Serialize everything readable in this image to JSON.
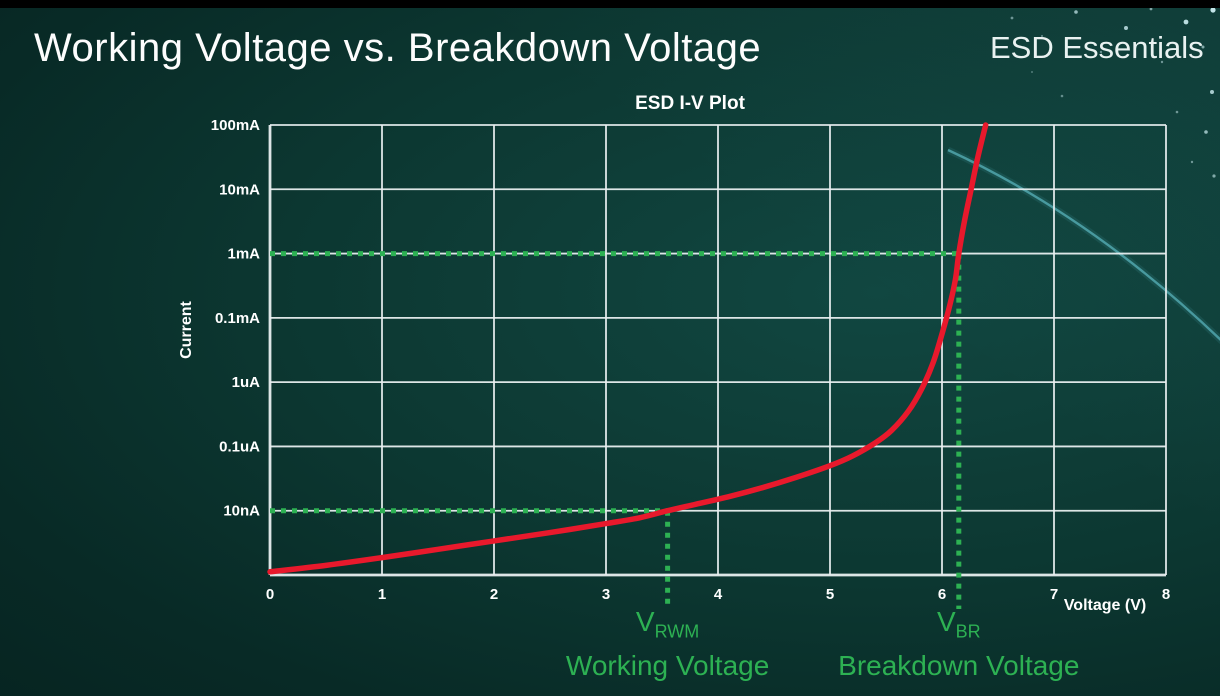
{
  "slide": {
    "title": "Working Voltage vs. Breakdown Voltage",
    "brand": "ESD Essentials"
  },
  "chart_data": {
    "type": "line",
    "title": "ESD I-V Plot",
    "xlabel": "Voltage (V)",
    "ylabel": "Current",
    "x_range": [
      0,
      8
    ],
    "x_ticks": [
      "0",
      "1",
      "2",
      "3",
      "4",
      "5",
      "6",
      "7",
      "8"
    ],
    "y_scale": "log",
    "y_tick_labels_top_to_bottom": [
      "100mA",
      "10mA",
      "1mA",
      "0.1mA",
      "1uA",
      "0.1uA",
      "10nA"
    ],
    "y_units_note": "y values of points are given in gridline rows above the bottom axis: 0 = bottom axis, 1 = 10nA, 2 = 0.1uA, 3 = 1uA, 4 = 0.1mA, 5 = 1mA, 6 = 10mA, 7 = 100mA",
    "grid": true,
    "legend": "none",
    "series": [
      {
        "name": "ESD I-V curve",
        "color": "#e8192c",
        "points": [
          [
            0,
            0.05
          ],
          [
            0.5,
            0.15
          ],
          [
            1,
            0.27
          ],
          [
            1.5,
            0.4
          ],
          [
            2,
            0.53
          ],
          [
            2.5,
            0.66
          ],
          [
            3,
            0.8
          ],
          [
            3.3,
            0.89
          ],
          [
            3.55,
            1.0
          ],
          [
            3.8,
            1.1
          ],
          [
            4.1,
            1.22
          ],
          [
            4.4,
            1.36
          ],
          [
            4.7,
            1.52
          ],
          [
            5.0,
            1.7
          ],
          [
            5.2,
            1.85
          ],
          [
            5.4,
            2.05
          ],
          [
            5.55,
            2.25
          ],
          [
            5.7,
            2.55
          ],
          [
            5.82,
            2.9
          ],
          [
            5.92,
            3.3
          ],
          [
            6.0,
            3.75
          ],
          [
            6.07,
            4.2
          ],
          [
            6.12,
            4.6
          ],
          [
            6.15,
            5.0
          ],
          [
            6.2,
            5.5
          ],
          [
            6.26,
            6.0
          ],
          [
            6.32,
            6.5
          ],
          [
            6.39,
            7.0
          ]
        ]
      }
    ],
    "annotations": [
      {
        "id": "vrwm",
        "label_main": "V",
        "label_sub": "RWM",
        "caption": "Working Voltage",
        "voltage": 3.55,
        "current_label": "10nA",
        "y_row": 1,
        "color": "#2db153"
      },
      {
        "id": "vbr",
        "label_main": "V",
        "label_sub": "BR",
        "caption": "Breakdown Voltage",
        "voltage": 6.15,
        "current_label": "1mA",
        "y_row": 5,
        "color": "#2db153"
      }
    ]
  },
  "colors": {
    "background_teal": "#0c3731",
    "grid_white": "#e9eff0",
    "curve_red": "#e8192c",
    "annotation_green": "#2db153",
    "title_white": "#fdfdfd"
  }
}
